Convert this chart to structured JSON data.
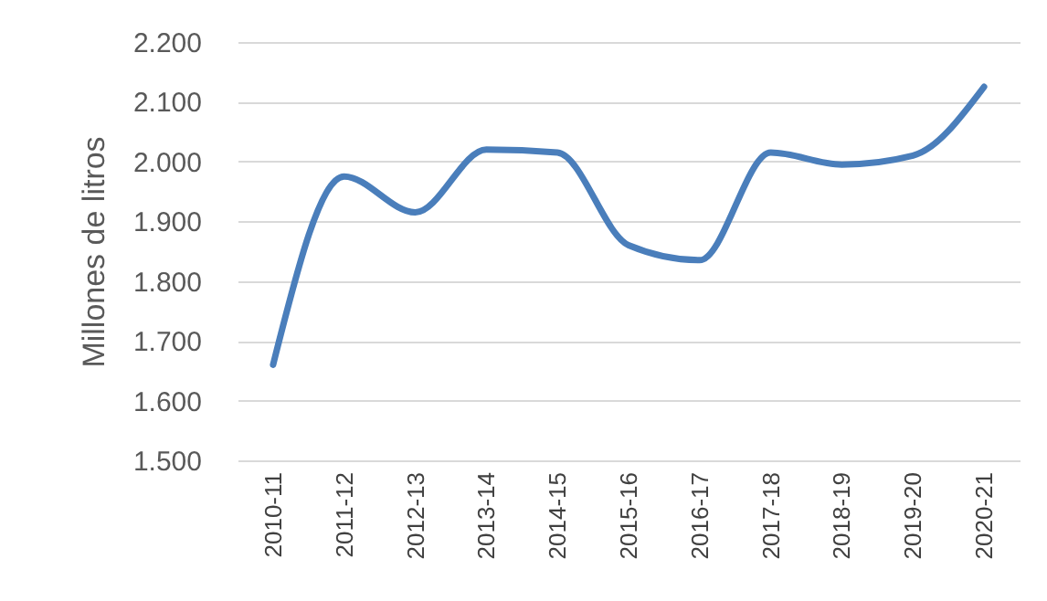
{
  "chart_data": {
    "type": "line",
    "ylabel": "Millones de litros",
    "categories": [
      "2010-11",
      "2011-12",
      "2012-13",
      "2013-14",
      "2014-15",
      "2015-16",
      "2016-17",
      "2017-18",
      "2018-19",
      "2019-20",
      "2020-21"
    ],
    "series": [
      {
        "color": "#4a7ebb",
        "values": [
          1660,
          1975,
          1915,
          2020,
          2015,
          1860,
          1835,
          2015,
          1995,
          2010,
          2125
        ]
      }
    ],
    "ylim": [
      1500,
      2200
    ],
    "yticks": [
      {
        "value": 1500,
        "label": "1.500"
      },
      {
        "value": 1600,
        "label": "1.600"
      },
      {
        "value": 1700,
        "label": "1.700"
      },
      {
        "value": 1800,
        "label": "1.800"
      },
      {
        "value": 1900,
        "label": "1.900"
      },
      {
        "value": 2000,
        "label": "2.000"
      },
      {
        "value": 2100,
        "label": "2.100"
      },
      {
        "value": 2200,
        "label": "2.200"
      }
    ],
    "grid": "y",
    "marker": "none",
    "line_style": "solid"
  }
}
